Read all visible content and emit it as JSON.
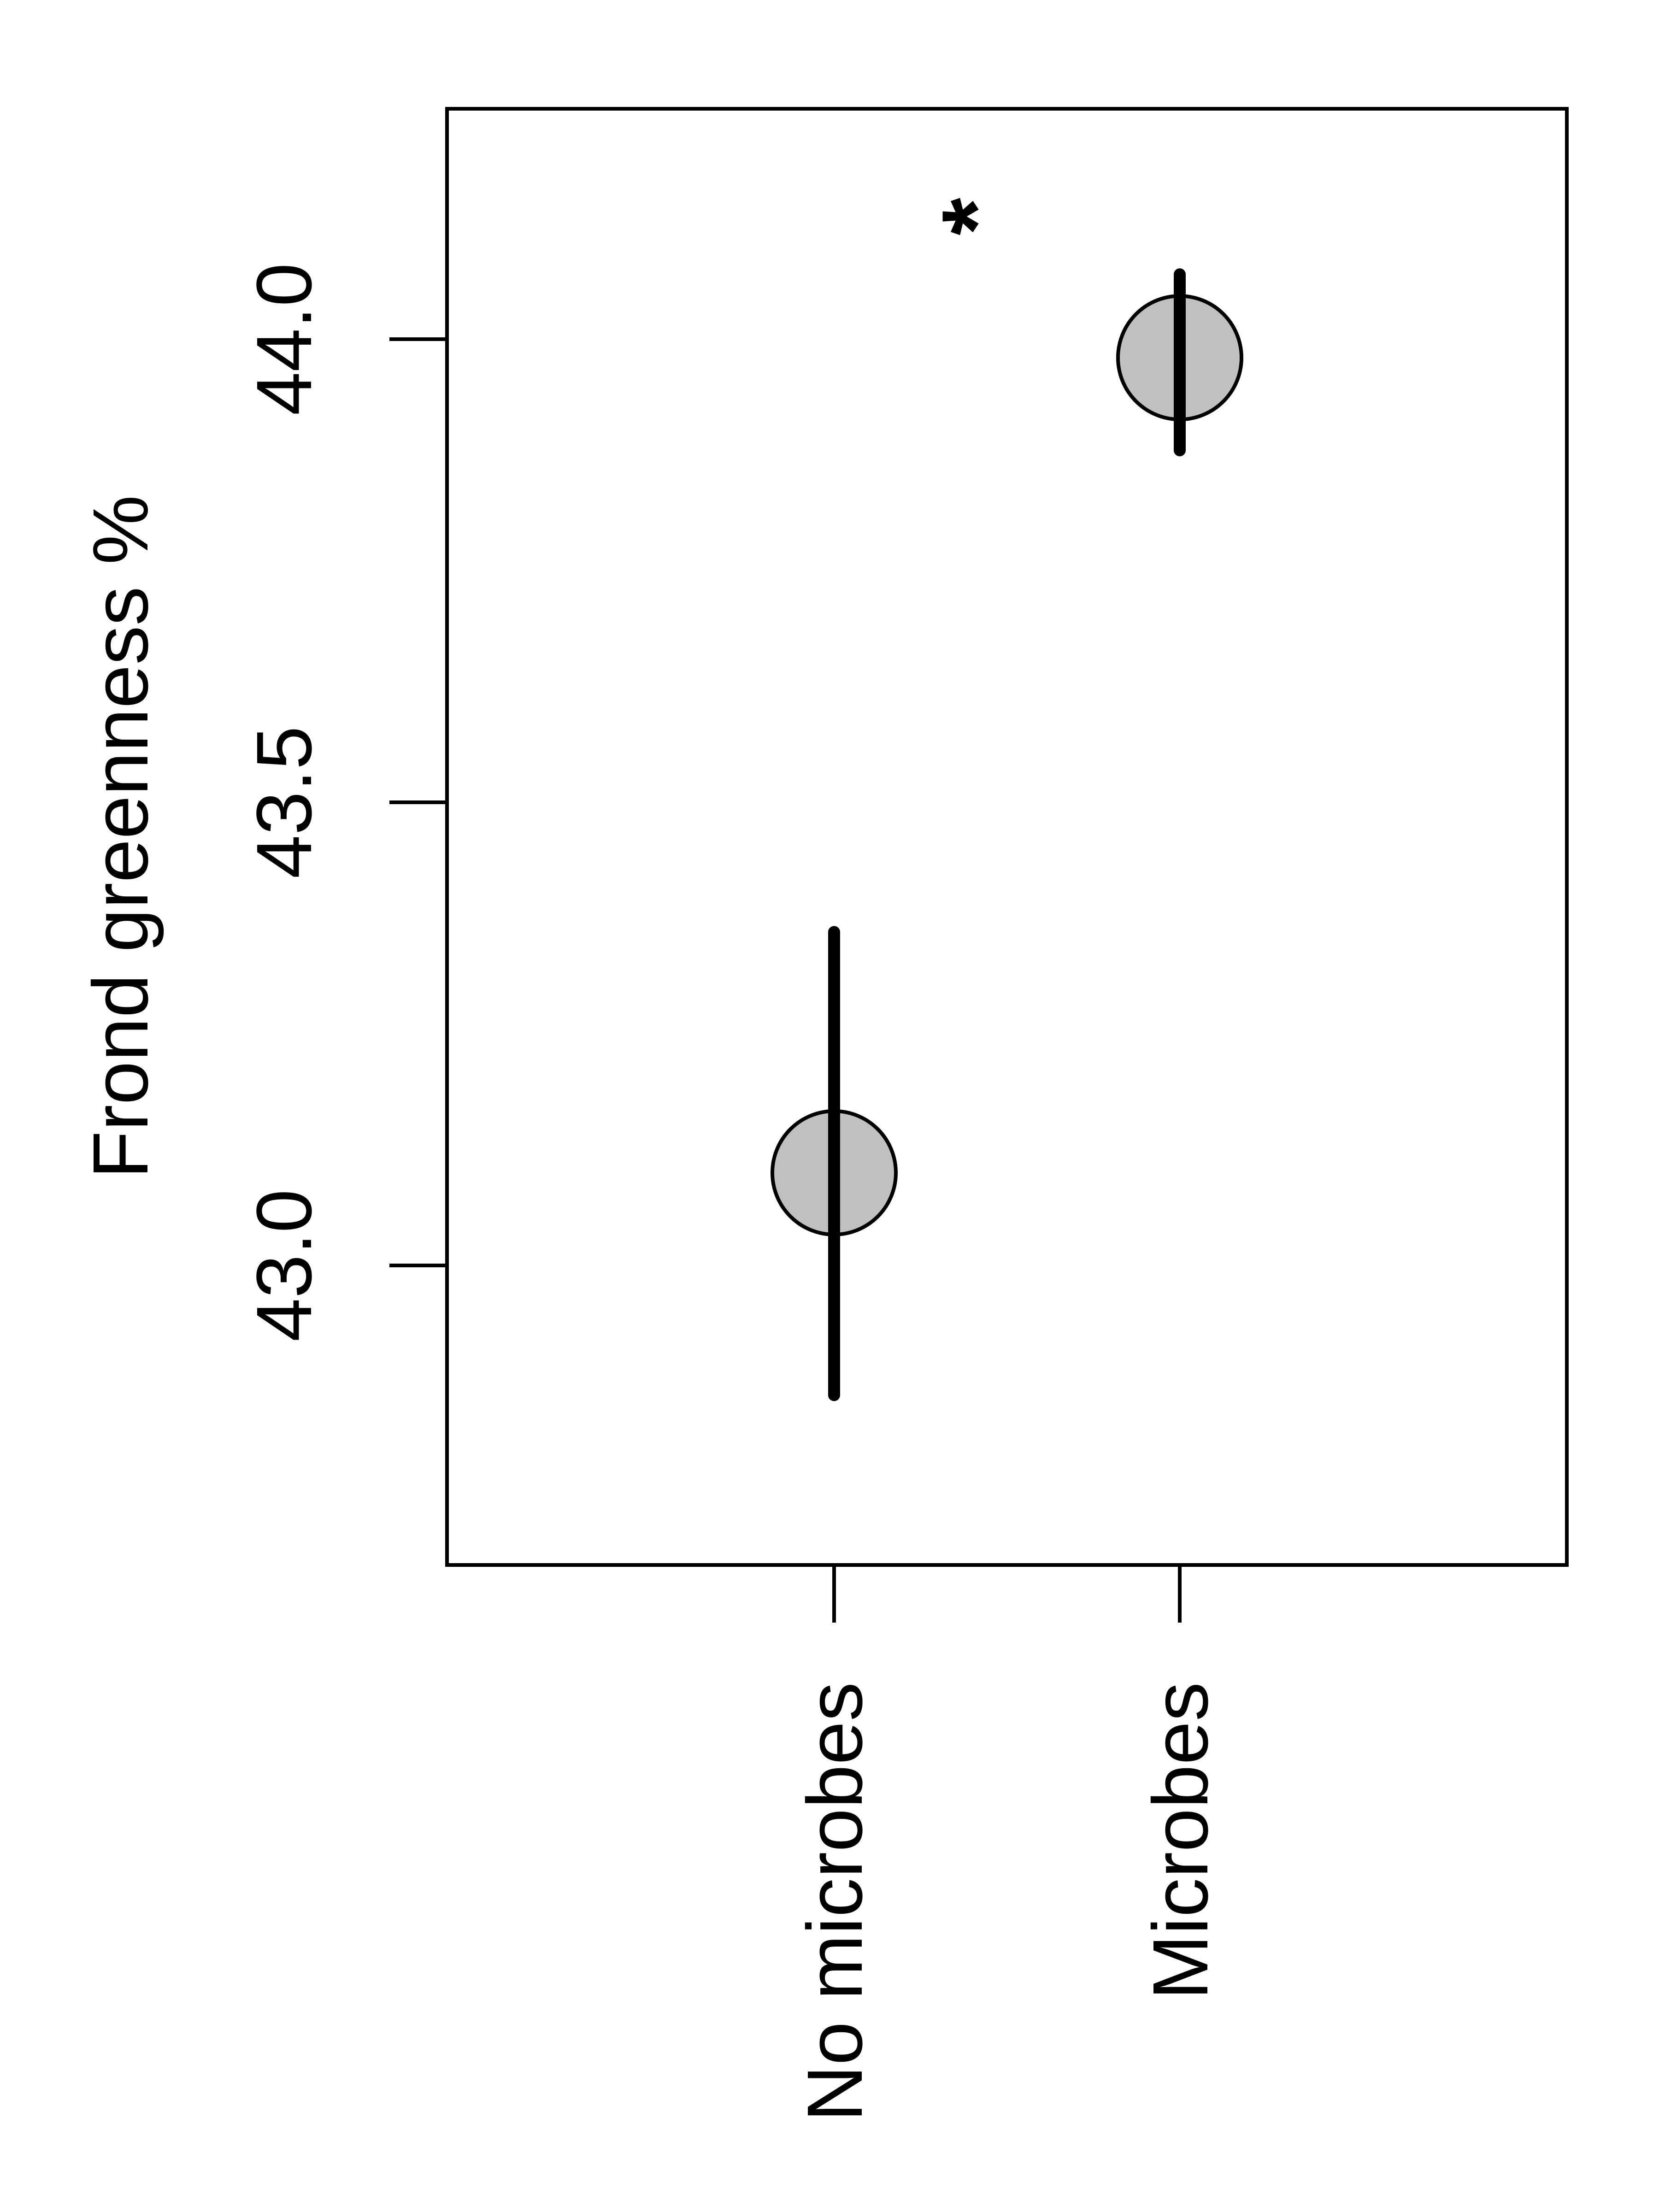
{
  "chart_data": {
    "type": "scatter",
    "ylabel": "Frond greenness %",
    "xlabel": "",
    "categories": [
      "No microbes",
      "Microbes"
    ],
    "yticks": [
      "43.0",
      "43.5",
      "44.0"
    ],
    "ylim": [
      42.68,
      44.25
    ],
    "points": [
      {
        "category": "No microbes",
        "mean": 43.1,
        "lower": 42.86,
        "upper": 43.36
      },
      {
        "category": "Microbes",
        "mean": 43.98,
        "lower": 43.88,
        "upper": 44.07
      }
    ],
    "annotation": "*",
    "colors": {
      "marker_fill": "#c0c0c0",
      "marker_stroke": "#000000",
      "line": "#000000"
    }
  }
}
